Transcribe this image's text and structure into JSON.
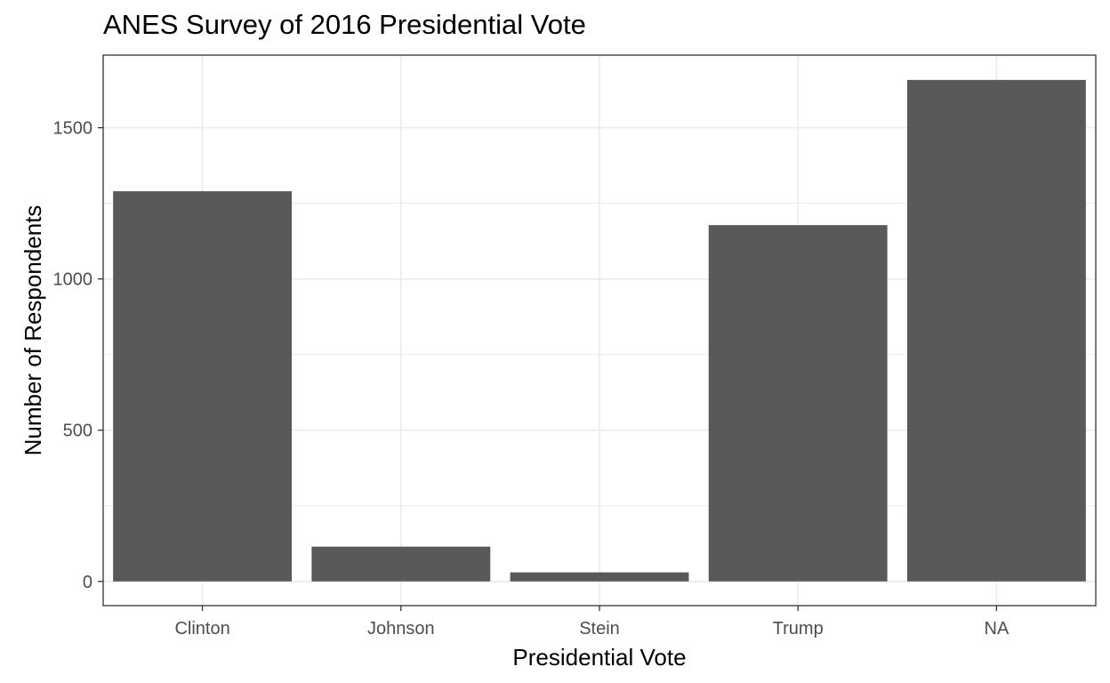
{
  "chart_data": {
    "type": "bar",
    "title": "ANES Survey of 2016 Presidential Vote",
    "xlabel": "Presidential Vote",
    "ylabel": "Number of Respondents",
    "categories": [
      "Clinton",
      "Johnson",
      "Stein",
      "Trump",
      "NA"
    ],
    "values": [
      1290,
      115,
      30,
      1178,
      1658
    ],
    "ylim": [
      -80,
      1740
    ],
    "yticks": [
      0,
      500,
      1000,
      1500
    ],
    "ytick_labels": [
      "0",
      "500",
      "1000",
      "1500"
    ],
    "grid": true,
    "legend": "none",
    "colors": {
      "bar": "#595959",
      "grid": "#ebebeb",
      "panel_border": "#333333",
      "tick_text": "#4d4d4d"
    }
  }
}
